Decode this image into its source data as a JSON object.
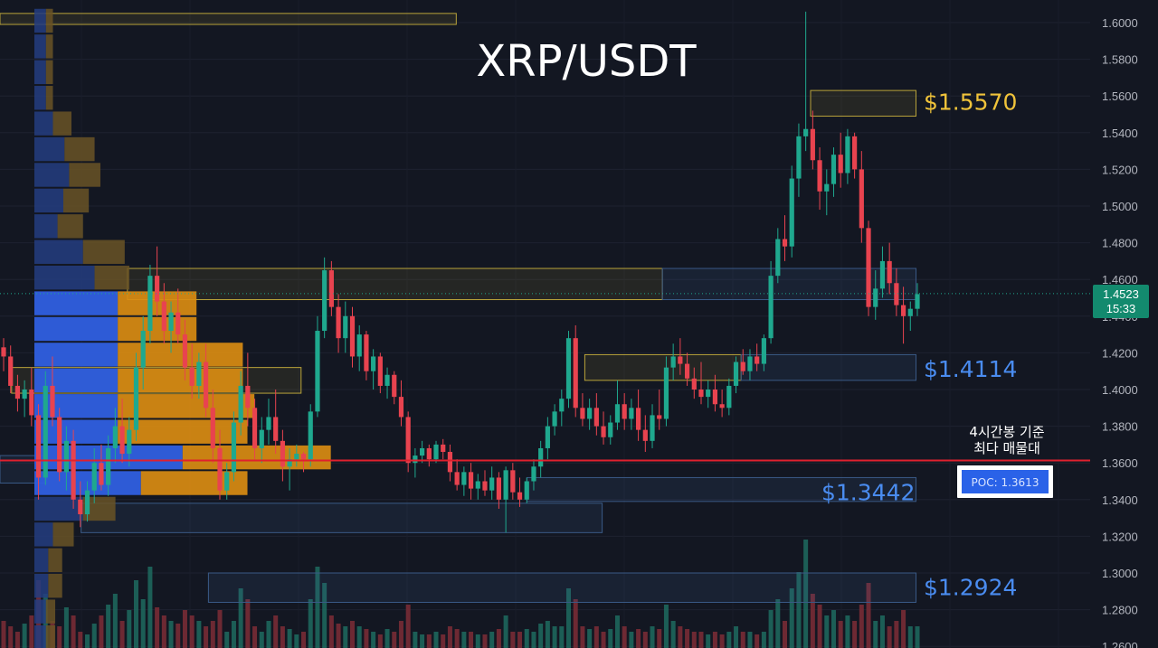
{
  "title": "XRP/USDT",
  "chart_data": {
    "type": "candlestick",
    "pair": "XRP/USDT",
    "y_axis": {
      "ticks": [
        "1.6000",
        "1.5800",
        "1.5600",
        "1.5400",
        "1.5200",
        "1.5000",
        "1.4800",
        "1.4600",
        "1.4400",
        "1.4200",
        "1.4000",
        "1.3800",
        "1.3600",
        "1.3400",
        "1.3200",
        "1.3000",
        "1.2800",
        "1.2600"
      ],
      "range": [
        1.26,
        1.605
      ]
    },
    "current_price": {
      "value": 1.4523,
      "label": "1.4523",
      "countdown": "15:33"
    },
    "poc": {
      "price": 1.3613,
      "label": "POC: 1.3613",
      "annotation_line1": "4시간봉 기준",
      "annotation_line2": "최다 매물대"
    },
    "levels": [
      {
        "label": "$1.5570",
        "price": 1.557,
        "color": "#f0c33a"
      },
      {
        "label": "$1.4114",
        "price": 1.4114,
        "color": "#4a8cf0"
      },
      {
        "label": "$1.3442",
        "price": 1.3442,
        "color": "#4a8cf0"
      },
      {
        "label": "$1.2924",
        "price": 1.2924,
        "color": "#4a8cf0"
      }
    ],
    "zones": [
      {
        "kind": "yellow",
        "top": 1.605,
        "bottom": 1.599,
        "from": 0,
        "to": 0.394
      },
      {
        "kind": "yellow",
        "top": 1.563,
        "bottom": 1.549,
        "from": 0.7,
        "to": 0.791
      },
      {
        "kind": "yellow",
        "top": 1.466,
        "bottom": 1.449,
        "from": 0.11,
        "to": 0.572
      },
      {
        "kind": "blue",
        "top": 1.466,
        "bottom": 1.449,
        "from": 0.572,
        "to": 0.791
      },
      {
        "kind": "yellow",
        "top": 1.419,
        "bottom": 1.405,
        "from": 0.505,
        "to": 0.64
      },
      {
        "kind": "blue",
        "top": 1.419,
        "bottom": 1.405,
        "from": 0.64,
        "to": 0.791
      },
      {
        "kind": "blue",
        "top": 1.352,
        "bottom": 1.339,
        "from": 0.455,
        "to": 0.791
      },
      {
        "kind": "blue",
        "top": 1.338,
        "bottom": 1.322,
        "from": 0.07,
        "to": 0.52
      },
      {
        "kind": "blue",
        "top": 1.3,
        "bottom": 1.284,
        "from": 0.18,
        "to": 0.791
      },
      {
        "kind": "blue",
        "top": 1.364,
        "bottom": 1.349,
        "from": 0,
        "to": 0.04
      },
      {
        "kind": "yellow",
        "top": 1.412,
        "bottom": 1.398,
        "from": 0.01,
        "to": 0.26
      }
    ],
    "volume_profile": [
      {
        "price": 1.601,
        "up": 0.01,
        "down": 0.006
      },
      {
        "price": 1.587,
        "up": 0.01,
        "down": 0.006
      },
      {
        "price": 1.573,
        "up": 0.01,
        "down": 0.006
      },
      {
        "price": 1.559,
        "up": 0.01,
        "down": 0.006
      },
      {
        "price": 1.545,
        "up": 0.016,
        "down": 0.016
      },
      {
        "price": 1.531,
        "up": 0.026,
        "down": 0.026
      },
      {
        "price": 1.517,
        "up": 0.03,
        "down": 0.027
      },
      {
        "price": 1.503,
        "up": 0.025,
        "down": 0.022
      },
      {
        "price": 1.489,
        "up": 0.02,
        "down": 0.022
      },
      {
        "price": 1.475,
        "up": 0.042,
        "down": 0.036
      },
      {
        "price": 1.461,
        "up": 0.052,
        "down": 0.03
      },
      {
        "price": 1.447,
        "up": 0.072,
        "down": 0.068
      },
      {
        "price": 1.433,
        "up": 0.072,
        "down": 0.068
      },
      {
        "price": 1.419,
        "up": 0.072,
        "down": 0.108
      },
      {
        "price": 1.405,
        "up": 0.072,
        "down": 0.108
      },
      {
        "price": 1.391,
        "up": 0.072,
        "down": 0.118
      },
      {
        "price": 1.377,
        "up": 0.072,
        "down": 0.112
      },
      {
        "price": 1.363,
        "up": 0.128,
        "down": 0.128
      },
      {
        "price": 1.349,
        "up": 0.092,
        "down": 0.092
      },
      {
        "price": 1.335,
        "up": 0.042,
        "down": 0.028
      },
      {
        "price": 1.321,
        "up": 0.016,
        "down": 0.018
      },
      {
        "price": 1.307,
        "up": 0.012,
        "down": 0.012
      },
      {
        "price": 1.293,
        "up": 0.012,
        "down": 0.012
      },
      {
        "price": 1.279,
        "up": 0.01,
        "down": 0.008
      },
      {
        "price": 1.265,
        "up": 0.01,
        "down": 0.008
      }
    ],
    "candles": [
      [
        1.423,
        1.428,
        1.41,
        1.418
      ],
      [
        1.418,
        1.424,
        1.398,
        1.402
      ],
      [
        1.402,
        1.408,
        1.388,
        1.395
      ],
      [
        1.395,
        1.405,
        1.385,
        1.4
      ],
      [
        1.4,
        1.412,
        1.38,
        1.386
      ],
      [
        1.386,
        1.392,
        1.34,
        1.352
      ],
      [
        1.352,
        1.41,
        1.348,
        1.402
      ],
      [
        1.402,
        1.418,
        1.38,
        1.385
      ],
      [
        1.385,
        1.39,
        1.35,
        1.355
      ],
      [
        1.355,
        1.38,
        1.345,
        1.372
      ],
      [
        1.372,
        1.378,
        1.335,
        1.34
      ],
      [
        1.34,
        1.35,
        1.325,
        1.332
      ],
      [
        1.332,
        1.35,
        1.328,
        1.345
      ],
      [
        1.345,
        1.368,
        1.338,
        1.36
      ],
      [
        1.36,
        1.37,
        1.345,
        1.348
      ],
      [
        1.348,
        1.375,
        1.342,
        1.368
      ],
      [
        1.368,
        1.39,
        1.36,
        1.38
      ],
      [
        1.38,
        1.395,
        1.36,
        1.365
      ],
      [
        1.365,
        1.385,
        1.358,
        1.378
      ],
      [
        1.378,
        1.42,
        1.372,
        1.412
      ],
      [
        1.412,
        1.44,
        1.4,
        1.432
      ],
      [
        1.432,
        1.468,
        1.425,
        1.462
      ],
      [
        1.462,
        1.478,
        1.44,
        1.448
      ],
      [
        1.448,
        1.458,
        1.425,
        1.432
      ],
      [
        1.432,
        1.448,
        1.42,
        1.442
      ],
      [
        1.442,
        1.455,
        1.425,
        1.43
      ],
      [
        1.43,
        1.438,
        1.405,
        1.412
      ],
      [
        1.412,
        1.425,
        1.395,
        1.402
      ],
      [
        1.402,
        1.42,
        1.395,
        1.415
      ],
      [
        1.415,
        1.425,
        1.385,
        1.39
      ],
      [
        1.39,
        1.4,
        1.36,
        1.368
      ],
      [
        1.368,
        1.378,
        1.34,
        1.345
      ],
      [
        1.345,
        1.36,
        1.34,
        1.355
      ],
      [
        1.355,
        1.388,
        1.35,
        1.382
      ],
      [
        1.382,
        1.41,
        1.375,
        1.402
      ],
      [
        1.402,
        1.42,
        1.38,
        1.39
      ],
      [
        1.39,
        1.395,
        1.362,
        1.368
      ],
      [
        1.368,
        1.385,
        1.36,
        1.378
      ],
      [
        1.378,
        1.395,
        1.37,
        1.385
      ],
      [
        1.385,
        1.4,
        1.365,
        1.372
      ],
      [
        1.372,
        1.378,
        1.35,
        1.358
      ],
      [
        1.358,
        1.368,
        1.345,
        1.362
      ],
      [
        1.362,
        1.37,
        1.358,
        1.365
      ],
      [
        1.365,
        1.366,
        1.355,
        1.362
      ],
      [
        1.362,
        1.392,
        1.358,
        1.388
      ],
      [
        1.388,
        1.44,
        1.385,
        1.432
      ],
      [
        1.432,
        1.472,
        1.428,
        1.465
      ],
      [
        1.465,
        1.47,
        1.44,
        1.445
      ],
      [
        1.445,
        1.452,
        1.42,
        1.428
      ],
      [
        1.428,
        1.448,
        1.42,
        1.44
      ],
      [
        1.44,
        1.445,
        1.412,
        1.418
      ],
      [
        1.418,
        1.435,
        1.41,
        1.43
      ],
      [
        1.43,
        1.432,
        1.405,
        1.41
      ],
      [
        1.41,
        1.422,
        1.4,
        1.418
      ],
      [
        1.418,
        1.42,
        1.398,
        1.402
      ],
      [
        1.402,
        1.412,
        1.395,
        1.408
      ],
      [
        1.408,
        1.41,
        1.392,
        1.396
      ],
      [
        1.396,
        1.405,
        1.38,
        1.385
      ],
      [
        1.385,
        1.388,
        1.355,
        1.36
      ],
      [
        1.36,
        1.368,
        1.352,
        1.364
      ],
      [
        1.364,
        1.372,
        1.36,
        1.368
      ],
      [
        1.368,
        1.37,
        1.358,
        1.362
      ],
      [
        1.362,
        1.372,
        1.36,
        1.37
      ],
      [
        1.37,
        1.373,
        1.362,
        1.366
      ],
      [
        1.366,
        1.37,
        1.35,
        1.355
      ],
      [
        1.355,
        1.362,
        1.345,
        1.348
      ],
      [
        1.348,
        1.358,
        1.342,
        1.355
      ],
      [
        1.355,
        1.36,
        1.34,
        1.346
      ],
      [
        1.346,
        1.354,
        1.34,
        1.35
      ],
      [
        1.35,
        1.356,
        1.342,
        1.345
      ],
      [
        1.345,
        1.358,
        1.34,
        1.352
      ],
      [
        1.352,
        1.355,
        1.335,
        1.34
      ],
      [
        1.34,
        1.358,
        1.322,
        1.356
      ],
      [
        1.356,
        1.36,
        1.34,
        1.344
      ],
      [
        1.344,
        1.352,
        1.336,
        1.34
      ],
      [
        1.34,
        1.352,
        1.338,
        1.35
      ],
      [
        1.35,
        1.362,
        1.345,
        1.358
      ],
      [
        1.358,
        1.372,
        1.352,
        1.368
      ],
      [
        1.368,
        1.385,
        1.362,
        1.38
      ],
      [
        1.38,
        1.392,
        1.375,
        1.388
      ],
      [
        1.388,
        1.4,
        1.38,
        1.395
      ],
      [
        1.395,
        1.432,
        1.39,
        1.428
      ],
      [
        1.428,
        1.435,
        1.385,
        1.39
      ],
      [
        1.39,
        1.398,
        1.38,
        1.384
      ],
      [
        1.384,
        1.395,
        1.378,
        1.39
      ],
      [
        1.39,
        1.398,
        1.375,
        1.38
      ],
      [
        1.38,
        1.388,
        1.37,
        1.374
      ],
      [
        1.374,
        1.386,
        1.37,
        1.382
      ],
      [
        1.382,
        1.405,
        1.378,
        1.392
      ],
      [
        1.392,
        1.398,
        1.378,
        1.384
      ],
      [
        1.384,
        1.395,
        1.378,
        1.39
      ],
      [
        1.39,
        1.4,
        1.372,
        1.378
      ],
      [
        1.378,
        1.386,
        1.366,
        1.372
      ],
      [
        1.372,
        1.392,
        1.368,
        1.386
      ],
      [
        1.386,
        1.4,
        1.378,
        1.384
      ],
      [
        1.384,
        1.418,
        1.38,
        1.412
      ],
      [
        1.412,
        1.425,
        1.405,
        1.418
      ],
      [
        1.418,
        1.428,
        1.408,
        1.414
      ],
      [
        1.414,
        1.42,
        1.402,
        1.406
      ],
      [
        1.406,
        1.412,
        1.395,
        1.4
      ],
      [
        1.4,
        1.415,
        1.392,
        1.396
      ],
      [
        1.396,
        1.405,
        1.39,
        1.4
      ],
      [
        1.4,
        1.408,
        1.388,
        1.392
      ],
      [
        1.392,
        1.4,
        1.385,
        1.39
      ],
      [
        1.39,
        1.406,
        1.386,
        1.402
      ],
      [
        1.402,
        1.418,
        1.398,
        1.415
      ],
      [
        1.415,
        1.422,
        1.408,
        1.41
      ],
      [
        1.41,
        1.422,
        1.405,
        1.418
      ],
      [
        1.418,
        1.425,
        1.41,
        1.414
      ],
      [
        1.414,
        1.43,
        1.41,
        1.428
      ],
      [
        1.428,
        1.47,
        1.425,
        1.462
      ],
      [
        1.462,
        1.488,
        1.458,
        1.482
      ],
      [
        1.482,
        1.495,
        1.47,
        1.478
      ],
      [
        1.478,
        1.522,
        1.472,
        1.515
      ],
      [
        1.515,
        1.545,
        1.505,
        1.538
      ],
      [
        1.538,
        1.606,
        1.53,
        1.542
      ],
      [
        1.542,
        1.552,
        1.52,
        1.525
      ],
      [
        1.525,
        1.532,
        1.498,
        1.508
      ],
      [
        1.508,
        1.52,
        1.495,
        1.512
      ],
      [
        1.512,
        1.532,
        1.505,
        1.528
      ],
      [
        1.528,
        1.54,
        1.51,
        1.518
      ],
      [
        1.518,
        1.542,
        1.512,
        1.538
      ],
      [
        1.538,
        1.54,
        1.515,
        1.52
      ],
      [
        1.52,
        1.53,
        1.48,
        1.488
      ],
      [
        1.488,
        1.492,
        1.44,
        1.445
      ],
      [
        1.445,
        1.465,
        1.438,
        1.455
      ],
      [
        1.455,
        1.478,
        1.45,
        1.47
      ],
      [
        1.47,
        1.48,
        1.452,
        1.458
      ],
      [
        1.458,
        1.466,
        1.44,
        1.446
      ],
      [
        1.446,
        1.456,
        1.425,
        1.44
      ],
      [
        1.44,
        1.448,
        1.432,
        1.444
      ],
      [
        1.444,
        1.458,
        1.44,
        1.452
      ]
    ],
    "volumes": [
      0.1,
      0.08,
      0.06,
      0.09,
      0.12,
      0.25,
      0.2,
      0.1,
      0.08,
      0.15,
      0.12,
      0.06,
      0.05,
      0.09,
      0.12,
      0.16,
      0.2,
      0.1,
      0.14,
      0.25,
      0.18,
      0.3,
      0.15,
      0.12,
      0.1,
      0.09,
      0.14,
      0.12,
      0.1,
      0.08,
      0.1,
      0.14,
      0.06,
      0.1,
      0.22,
      0.18,
      0.08,
      0.06,
      0.1,
      0.12,
      0.08,
      0.07,
      0.05,
      0.06,
      0.18,
      0.3,
      0.24,
      0.12,
      0.09,
      0.08,
      0.1,
      0.08,
      0.07,
      0.06,
      0.05,
      0.07,
      0.06,
      0.1,
      0.16,
      0.06,
      0.05,
      0.05,
      0.06,
      0.05,
      0.08,
      0.07,
      0.06,
      0.06,
      0.05,
      0.05,
      0.06,
      0.07,
      0.12,
      0.06,
      0.06,
      0.07,
      0.06,
      0.09,
      0.1,
      0.08,
      0.08,
      0.22,
      0.18,
      0.08,
      0.07,
      0.08,
      0.06,
      0.07,
      0.12,
      0.08,
      0.06,
      0.07,
      0.06,
      0.08,
      0.07,
      0.16,
      0.1,
      0.08,
      0.07,
      0.06,
      0.06,
      0.05,
      0.06,
      0.05,
      0.06,
      0.08,
      0.06,
      0.06,
      0.05,
      0.06,
      0.14,
      0.18,
      0.1,
      0.22,
      0.28,
      0.4,
      0.2,
      0.16,
      0.12,
      0.14,
      0.1,
      0.12,
      0.1,
      0.16,
      0.24,
      0.1,
      0.12,
      0.08,
      0.1,
      0.14,
      0.08,
      0.08
    ]
  }
}
